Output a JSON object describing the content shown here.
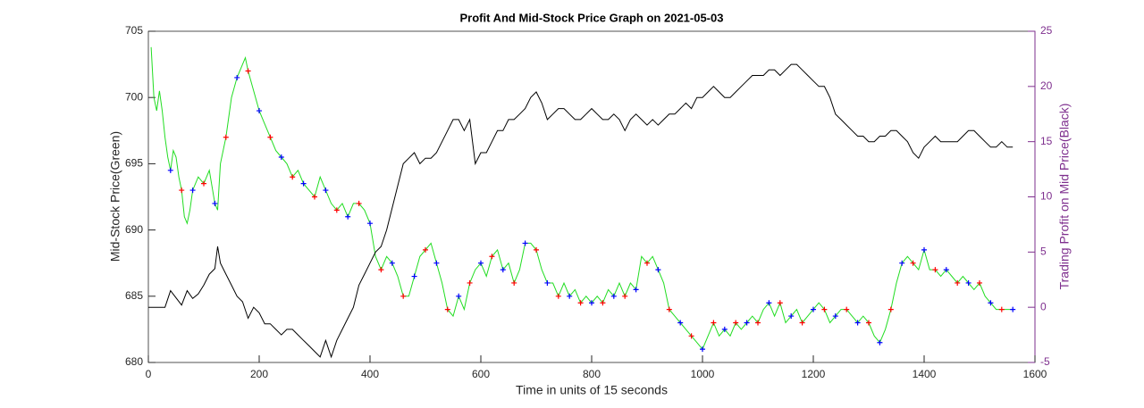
{
  "chart_data": {
    "type": "line",
    "title": "Profit And Mid-Stock Price Graph on 2021-05-03",
    "x_label": "Time in units of 15 seconds",
    "y_label": "Mid-Stock Price(Green)",
    "y2_label": "Trading Profit on Mid Price(Black)",
    "xlim": [
      0,
      1600
    ],
    "xticks": [
      0,
      200,
      400,
      600,
      800,
      1000,
      1200,
      1400,
      1600
    ],
    "ylim": [
      680,
      705
    ],
    "yticks": [
      680,
      685,
      690,
      695,
      700,
      705
    ],
    "y2lim": [
      -5,
      25
    ],
    "y2ticks": [
      -5,
      0,
      5,
      10,
      15,
      20,
      25
    ],
    "y2_color": "#7e2f8e",
    "series": [
      {
        "type": "line",
        "color": "#22dd22",
        "x": [
          5,
          10,
          15,
          20,
          25,
          30,
          35,
          40,
          45,
          50,
          55,
          60,
          65,
          70,
          75,
          80,
          90,
          100,
          110,
          120,
          125,
          130,
          140,
          150,
          160,
          170,
          175,
          180,
          190,
          200,
          210,
          220,
          230,
          240,
          250,
          260,
          270,
          280,
          290,
          300,
          310,
          320,
          330,
          340,
          350,
          360,
          370,
          380,
          390,
          400,
          410,
          420,
          430,
          440,
          450,
          460,
          470,
          480,
          490,
          500,
          510,
          520,
          530,
          540,
          550,
          560,
          570,
          580,
          590,
          600,
          610,
          620,
          630,
          640,
          650,
          660,
          670,
          680,
          690,
          700,
          710,
          720,
          730,
          740,
          750,
          760,
          770,
          780,
          790,
          800,
          810,
          820,
          830,
          840,
          850,
          860,
          870,
          880,
          890,
          900,
          910,
          920,
          930,
          940,
          950,
          960,
          970,
          980,
          990,
          1000,
          1010,
          1020,
          1030,
          1040,
          1050,
          1060,
          1070,
          1080,
          1090,
          1100,
          1110,
          1120,
          1130,
          1140,
          1150,
          1160,
          1170,
          1180,
          1190,
          1200,
          1210,
          1220,
          1230,
          1240,
          1250,
          1260,
          1270,
          1280,
          1290,
          1300,
          1310,
          1320,
          1330,
          1340,
          1350,
          1360,
          1370,
          1380,
          1390,
          1400,
          1410,
          1420,
          1430,
          1440,
          1450,
          1460,
          1470,
          1480,
          1490,
          1500,
          1510,
          1520,
          1530,
          1540,
          1550,
          1560
        ],
        "values": [
          703.8,
          700,
          699,
          700.5,
          699,
          697,
          695.5,
          694.5,
          696,
          695.5,
          694,
          693,
          691,
          690.5,
          691.5,
          693,
          694,
          693.5,
          694.5,
          692,
          691.5,
          695,
          697,
          700,
          701.5,
          702.5,
          703,
          702,
          700.5,
          699,
          698,
          697,
          696,
          695.5,
          695,
          694,
          694.5,
          693.5,
          693,
          692.5,
          694,
          693,
          692,
          691.5,
          692,
          691,
          692,
          692,
          691.5,
          690.5,
          688,
          687,
          688,
          687.5,
          686.5,
          685,
          685,
          686.5,
          688,
          688.5,
          689,
          687.5,
          686,
          684,
          683.5,
          685,
          684,
          686,
          687,
          687.5,
          686.5,
          688,
          688.5,
          687,
          687.5,
          686,
          687,
          689,
          689,
          688.5,
          687,
          686,
          686,
          685,
          686,
          685,
          685.5,
          684.5,
          685,
          684.5,
          685,
          684.5,
          685.5,
          685,
          686,
          685,
          686,
          685.5,
          688,
          687.5,
          688,
          687,
          686,
          684,
          683.5,
          683,
          682.5,
          682,
          681.5,
          681,
          682,
          683,
          682,
          682.5,
          682,
          683,
          682.5,
          683,
          683.5,
          683,
          684,
          684.5,
          683.5,
          684.5,
          683,
          683.5,
          684,
          683,
          683.5,
          684,
          684.5,
          684,
          683,
          683.5,
          684,
          684,
          683.5,
          683,
          683.5,
          683,
          682,
          681.5,
          682.5,
          684,
          686,
          687.5,
          688,
          687.5,
          687,
          688.5,
          687,
          687,
          686.5,
          687,
          686.5,
          686,
          686.5,
          686,
          685.5,
          686,
          685,
          684.5,
          684,
          684,
          684,
          684
        ]
      },
      {
        "type": "line",
        "color": "#000000",
        "axis": "y2",
        "x": [
          0,
          30,
          40,
          60,
          70,
          80,
          90,
          100,
          110,
          120,
          125,
          130,
          140,
          150,
          160,
          170,
          180,
          190,
          200,
          210,
          220,
          230,
          240,
          250,
          260,
          270,
          280,
          290,
          300,
          310,
          320,
          330,
          340,
          350,
          360,
          370,
          380,
          390,
          400,
          410,
          420,
          430,
          440,
          450,
          460,
          470,
          480,
          490,
          500,
          510,
          520,
          530,
          540,
          550,
          560,
          570,
          580,
          590,
          600,
          610,
          620,
          630,
          640,
          650,
          660,
          670,
          680,
          690,
          700,
          710,
          720,
          730,
          740,
          750,
          760,
          770,
          780,
          790,
          800,
          810,
          820,
          830,
          840,
          850,
          860,
          870,
          880,
          890,
          900,
          910,
          920,
          930,
          940,
          950,
          960,
          970,
          980,
          990,
          1000,
          1010,
          1020,
          1030,
          1040,
          1050,
          1060,
          1070,
          1080,
          1090,
          1100,
          1110,
          1120,
          1130,
          1140,
          1150,
          1160,
          1170,
          1180,
          1190,
          1200,
          1210,
          1220,
          1230,
          1240,
          1250,
          1260,
          1270,
          1280,
          1290,
          1300,
          1310,
          1320,
          1330,
          1340,
          1350,
          1360,
          1370,
          1380,
          1390,
          1400,
          1410,
          1420,
          1430,
          1440,
          1450,
          1460,
          1470,
          1480,
          1490,
          1500,
          1510,
          1520,
          1530,
          1540,
          1550,
          1560
        ],
        "values": [
          0,
          0,
          1.5,
          0.2,
          1.5,
          0.8,
          1.2,
          2,
          3,
          3.5,
          5.5,
          4,
          3,
          2,
          1,
          0.5,
          -1,
          0,
          -0.5,
          -1.5,
          -1.5,
          -2,
          -2.5,
          -2,
          -2,
          -2.5,
          -3,
          -3.5,
          -4,
          -4.5,
          -3,
          -4.5,
          -3,
          -2,
          -1,
          0,
          2,
          3,
          4,
          5,
          5.5,
          7,
          9,
          11,
          13,
          13.5,
          14,
          13,
          13.5,
          13.5,
          14,
          15,
          16,
          17,
          17,
          16,
          17,
          13,
          14,
          14,
          15,
          16,
          16,
          17,
          17,
          17.5,
          18,
          19,
          19.5,
          18.5,
          17,
          17.5,
          18,
          18,
          17.5,
          17,
          17,
          17.5,
          18,
          17.5,
          17,
          17,
          17.5,
          17,
          16,
          17,
          17.5,
          17,
          16.5,
          17,
          16.5,
          17,
          17.5,
          17.5,
          18,
          18.5,
          18,
          19,
          19,
          19.5,
          20,
          19.5,
          19,
          19,
          19.5,
          20,
          20.5,
          21,
          21,
          21,
          21.5,
          21.5,
          21,
          21.5,
          22,
          22,
          21.5,
          21,
          20.5,
          20,
          20,
          19,
          17.5,
          17,
          16.5,
          16,
          15.5,
          15.5,
          15,
          15,
          15.5,
          15.5,
          16,
          16,
          15.5,
          15,
          14,
          13.5,
          14.5,
          15,
          15.5,
          15,
          15,
          15,
          15,
          15.5,
          16,
          16,
          15.5,
          15,
          14.5,
          14.5,
          15,
          14.5,
          14.5
        ]
      },
      {
        "type": "scatter",
        "color": "#0000ff",
        "x": [
          40,
          80,
          120,
          160,
          200,
          240,
          280,
          320,
          360,
          400,
          440,
          480,
          520,
          560,
          600,
          640,
          680,
          720,
          760,
          800,
          840,
          880,
          920,
          960,
          1000,
          1040,
          1080,
          1120,
          1160,
          1200,
          1240,
          1280,
          1320,
          1360,
          1400,
          1440,
          1480,
          1520,
          1560
        ],
        "values": [
          694.5,
          693,
          692,
          701.5,
          699,
          695.5,
          693.5,
          693,
          691,
          690.5,
          687.5,
          686.5,
          687.5,
          685,
          687.5,
          687,
          689,
          686,
          685,
          684.5,
          685,
          685.5,
          687,
          683,
          681,
          682.5,
          683,
          684.5,
          683.5,
          684,
          683.5,
          683,
          681.5,
          687.5,
          688.5,
          687,
          686,
          684.5,
          684
        ]
      },
      {
        "type": "scatter",
        "color": "#ff0000",
        "x": [
          60,
          100,
          140,
          180,
          220,
          260,
          300,
          340,
          380,
          420,
          460,
          500,
          540,
          580,
          620,
          660,
          700,
          740,
          780,
          820,
          860,
          900,
          940,
          980,
          1020,
          1060,
          1100,
          1140,
          1180,
          1220,
          1260,
          1300,
          1340,
          1380,
          1420,
          1460,
          1500,
          1540
        ],
        "values": [
          693,
          693.5,
          697,
          702,
          697,
          694,
          692.5,
          691.5,
          692,
          687,
          685,
          688.5,
          684,
          686,
          688,
          686,
          688.5,
          685,
          684.5,
          684.5,
          685,
          687.5,
          684,
          682,
          683,
          683,
          683,
          684.5,
          683,
          684,
          684,
          683,
          684,
          687.5,
          687,
          686,
          686,
          684
        ]
      }
    ]
  }
}
